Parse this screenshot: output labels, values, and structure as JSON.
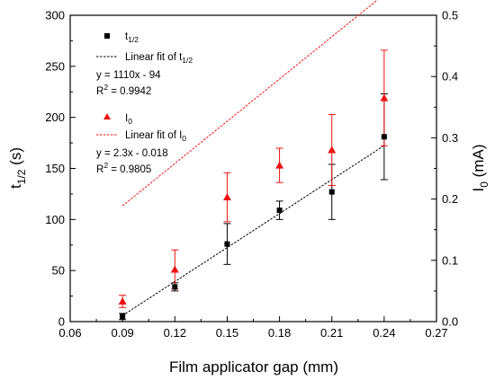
{
  "chart_data": {
    "type": "scatter",
    "xlabel": "Film applicator gap (mm)",
    "ylabel_left": {
      "main": "t",
      "sub": "1/2",
      "unit": " (s)"
    },
    "ylabel_right": {
      "main": "I",
      "sub": "0",
      "unit": " (mA)"
    },
    "xlim": [
      0.06,
      0.27
    ],
    "ylim_left": [
      0,
      300
    ],
    "ylim_right": [
      0,
      0.5
    ],
    "xticks": [
      0.06,
      0.09,
      0.12,
      0.15,
      0.18,
      0.21,
      0.24,
      0.27
    ],
    "xtick_labels": [
      "0.06",
      "0.09",
      "0.12",
      "0.15",
      "0.18",
      "0.21",
      "0.24",
      "0.27"
    ],
    "yticks_left": [
      0,
      50,
      100,
      150,
      200,
      250,
      300
    ],
    "ytick_labels_left": [
      "0",
      "50",
      "100",
      "150",
      "200",
      "250",
      "300"
    ],
    "yticks_right": [
      0.0,
      0.1,
      0.2,
      0.3,
      0.4,
      0.5
    ],
    "ytick_labels_right": [
      "0.0",
      "0.1",
      "0.2",
      "0.3",
      "0.4",
      "0.5"
    ],
    "grid": false,
    "legend_position": "upper-left",
    "series": [
      {
        "name": "t1/2",
        "axis": "left",
        "marker": "square",
        "color": "#000000",
        "x": [
          0.09,
          0.12,
          0.15,
          0.18,
          0.21,
          0.24
        ],
        "y": [
          5,
          34,
          76,
          109,
          127,
          181
        ],
        "yerr": [
          3,
          4,
          20,
          9,
          27,
          42
        ]
      },
      {
        "name": "I0",
        "axis": "right",
        "marker": "triangle",
        "color": "#ee1111",
        "x": [
          0.09,
          0.12,
          0.15,
          0.18,
          0.21,
          0.24
        ],
        "y": [
          0.033,
          0.085,
          0.203,
          0.255,
          0.28,
          0.365
        ],
        "yerr": [
          0.01,
          0.032,
          0.04,
          0.028,
          0.058,
          0.078
        ]
      }
    ],
    "fits": [
      {
        "axis": "left",
        "color": "#000000",
        "slope": 1110,
        "intercept": -94,
        "x_range": [
          0.09,
          0.24
        ]
      },
      {
        "axis": "right",
        "color": "#ee1111",
        "slope": 2.3,
        "intercept": -0.018,
        "x_range": [
          0.09,
          0.24
        ]
      }
    ]
  },
  "legend": {
    "t_series": {
      "main": "t",
      "sub": "1/2"
    },
    "t_fit": {
      "prefix": "Linear fit of t",
      "sub": "1/2"
    },
    "t_equation": "y = 1110x - 94",
    "t_r2": {
      "prefix": "R",
      "sup": "2",
      "value": " = 0.9942"
    },
    "i_series": {
      "main": "I",
      "sub": "0"
    },
    "i_fit": {
      "prefix": "Linear fit of I",
      "sub": "0"
    },
    "i_equation": "y = 2.3x - 0.018",
    "i_r2": {
      "prefix": "R",
      "sup": "2",
      "value": " = 0.9805"
    }
  },
  "colors": {
    "black_series": "#000000",
    "red_series": "#ee1111"
  }
}
